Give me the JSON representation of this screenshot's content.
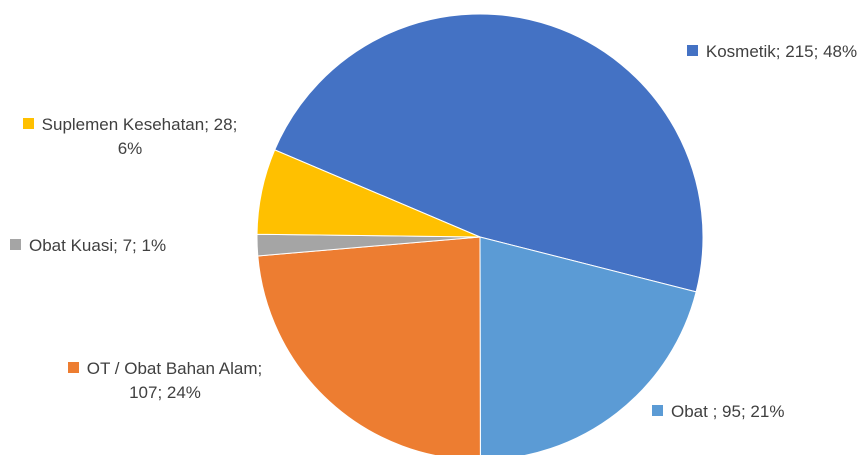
{
  "chart_data": {
    "type": "pie",
    "categories": [
      "Kosmetik",
      "Obat ",
      "OT / Obat Bahan Alam",
      "Obat Kuasi",
      "Suplemen Kesehatan"
    ],
    "values": [
      215,
      95,
      107,
      7,
      28
    ],
    "percent_labels": [
      "48%",
      "21%",
      "24%",
      "1%",
      "6%"
    ],
    "label_separator": "; ",
    "colors": [
      "#4472c4",
      "#5b9bd5",
      "#ed7d31",
      "#a5a5a5",
      "#ffc000"
    ]
  }
}
